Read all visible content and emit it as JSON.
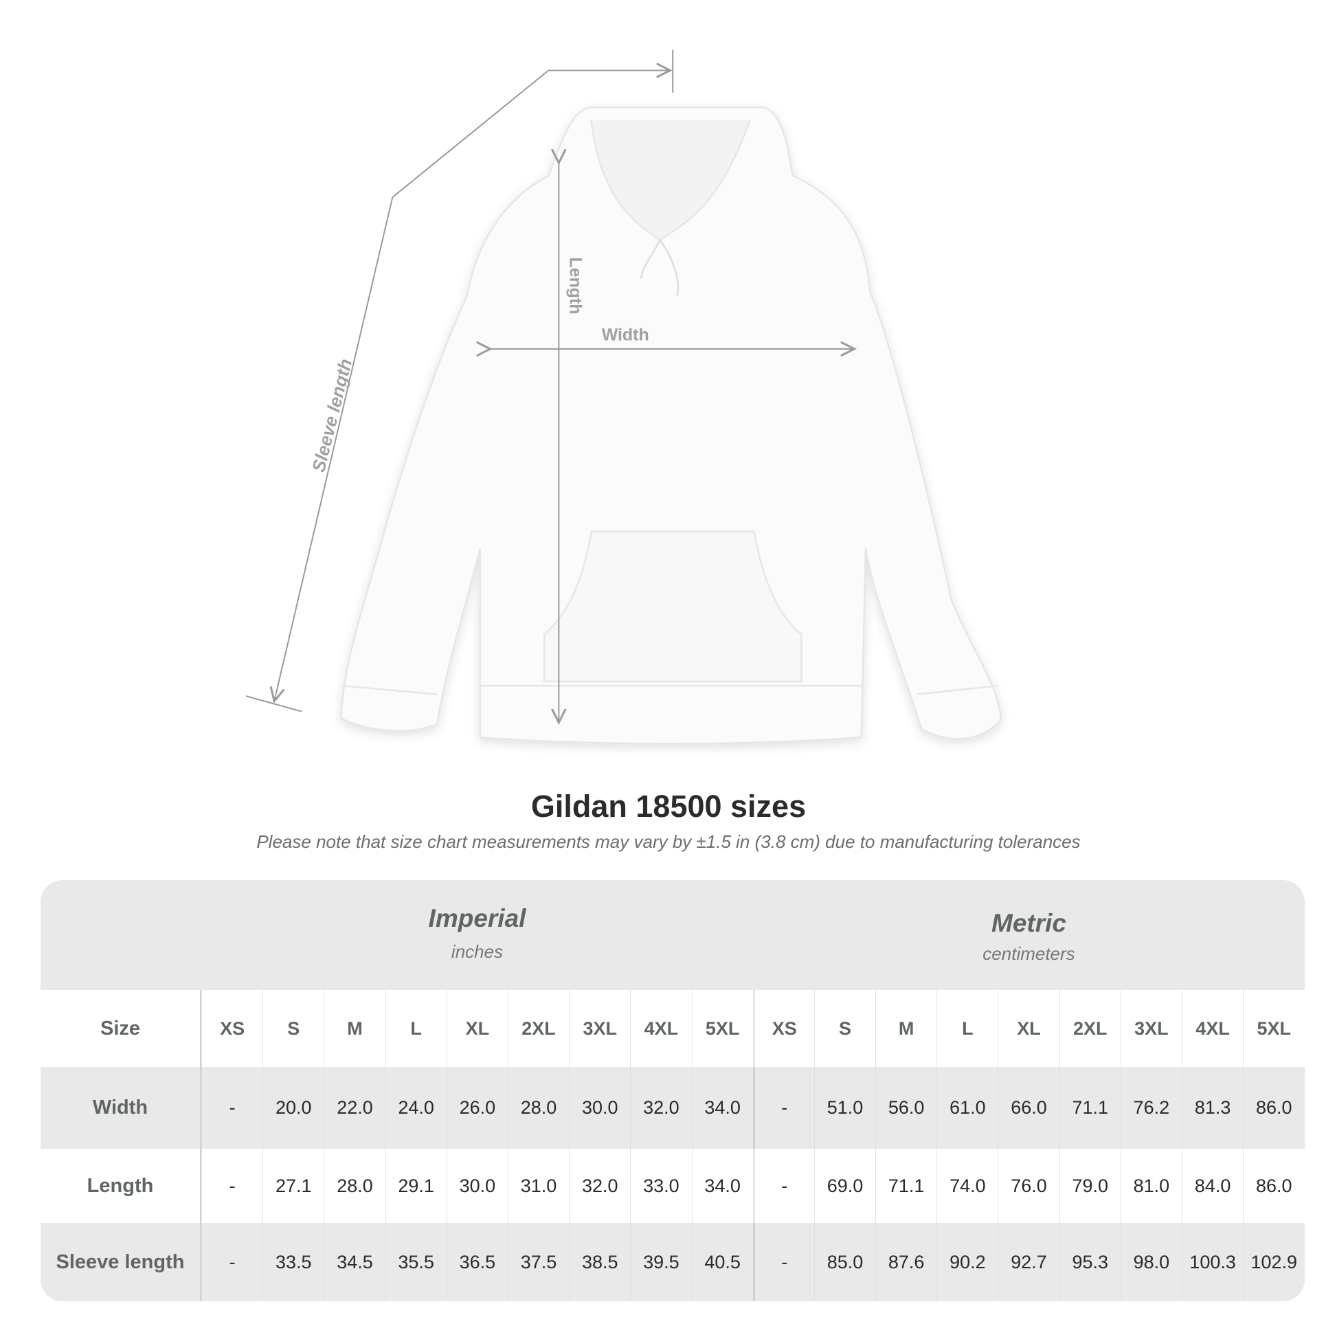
{
  "diagram": {
    "labels": {
      "sleeve": "Sleeve length",
      "length": "Length",
      "width": "Width"
    }
  },
  "title": "Gildan 18500 sizes",
  "subtitle": "Please note that size chart measurements may vary by ±1.5 in (3.8 cm) due to manufacturing tolerances",
  "table": {
    "imperial": {
      "title": "Imperial",
      "unit": "inches"
    },
    "metric": {
      "title": "Metric",
      "unit": "centimeters"
    },
    "size_label": "Size",
    "sizes": [
      "XS",
      "S",
      "M",
      "L",
      "XL",
      "2XL",
      "3XL",
      "4XL",
      "5XL"
    ],
    "rows": [
      {
        "label": "Width",
        "imperial": [
          "-",
          "20.0",
          "22.0",
          "24.0",
          "26.0",
          "28.0",
          "30.0",
          "32.0",
          "34.0"
        ],
        "metric": [
          "-",
          "51.0",
          "56.0",
          "61.0",
          "66.0",
          "71.1",
          "76.2",
          "81.3",
          "86.0"
        ]
      },
      {
        "label": "Length",
        "imperial": [
          "-",
          "27.1",
          "28.0",
          "29.1",
          "30.0",
          "31.0",
          "32.0",
          "33.0",
          "34.0"
        ],
        "metric": [
          "-",
          "69.0",
          "71.1",
          "74.0",
          "76.0",
          "79.0",
          "81.0",
          "84.0",
          "86.0"
        ]
      },
      {
        "label": "Sleeve length",
        "imperial": [
          "-",
          "33.5",
          "34.5",
          "35.5",
          "36.5",
          "37.5",
          "38.5",
          "39.5",
          "40.5"
        ],
        "metric": [
          "-",
          "85.0",
          "87.6",
          "90.2",
          "92.7",
          "95.3",
          "98.0",
          "100.3",
          "102.9"
        ]
      }
    ]
  },
  "colors": {
    "header_bg": "#e9e9e9",
    "label_text": "#5f6566",
    "measure_line": "#9a9a9a"
  }
}
